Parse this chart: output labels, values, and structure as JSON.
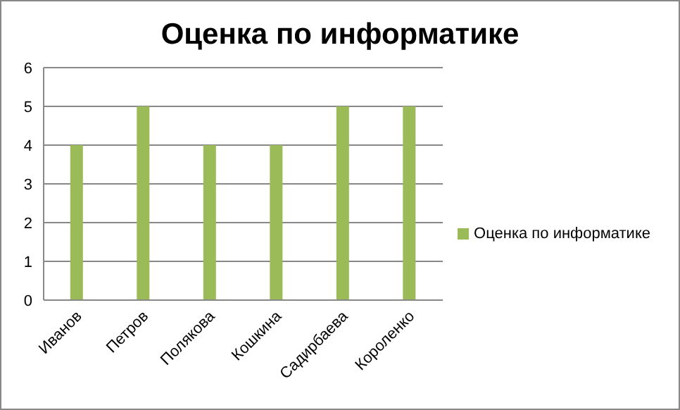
{
  "chart_data": {
    "type": "bar",
    "title": "Оценка по информатике",
    "categories": [
      "Иванов",
      "Петров",
      "Полякова",
      "Кошкина",
      "Садирбаева",
      "Короленко"
    ],
    "series": [
      {
        "name": "Оценка по информатике",
        "color": "#9bbb59",
        "values": [
          4,
          5,
          4,
          4,
          5,
          5
        ]
      }
    ],
    "ylim": [
      0,
      6
    ],
    "yticks": [
      0,
      1,
      2,
      3,
      4,
      5,
      6
    ],
    "grid": "y",
    "legend": "right"
  }
}
